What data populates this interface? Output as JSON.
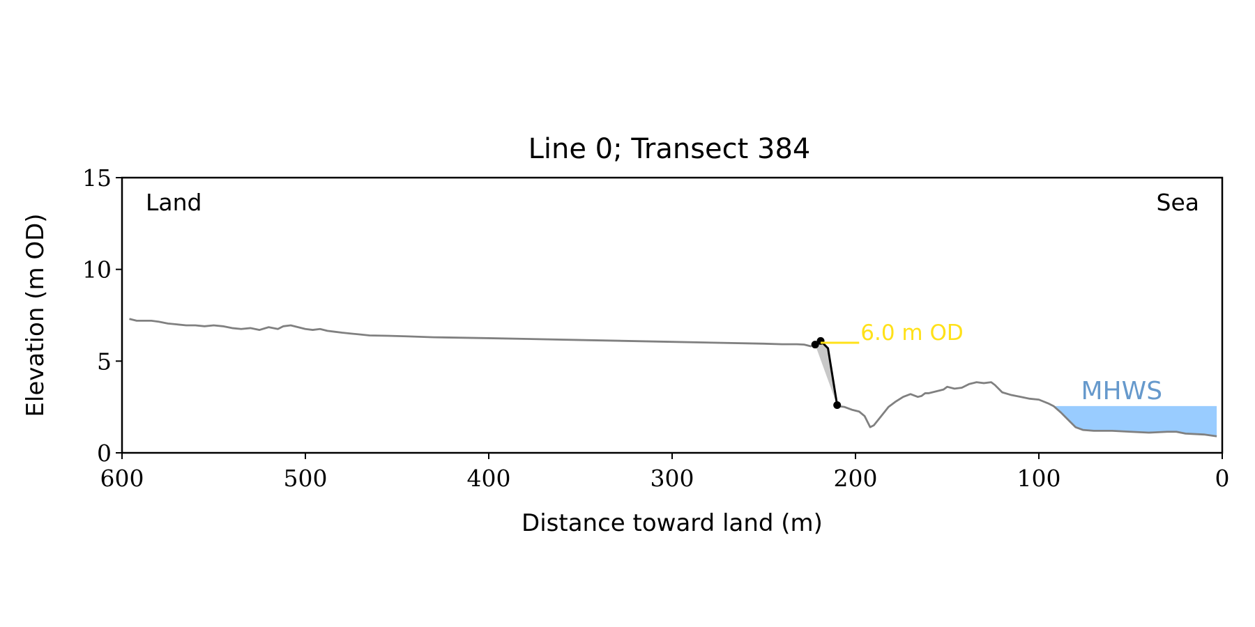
{
  "chart_data": {
    "type": "line",
    "title": "Line 0; Transect 384",
    "xlabel": "Distance toward land (m)",
    "ylabel": "Elevation (m OD)",
    "xlim": [
      600,
      0
    ],
    "ylim": [
      0,
      15
    ],
    "x_ticks": [
      600,
      500,
      400,
      300,
      200,
      100,
      0
    ],
    "y_ticks": [
      0,
      5,
      10,
      15
    ],
    "grid": false,
    "corner_labels": {
      "left": "Land",
      "right": "Sea"
    },
    "colors": {
      "profile": "#808080",
      "cliff": "#000000",
      "cliff_fill": "#c8c8c8",
      "threshold": "#ffe119",
      "mhws": "#99ccff",
      "mhws_text": "#6699cc"
    },
    "series": [
      {
        "x": [
          596,
          592,
          588,
          584,
          580,
          575,
          570,
          565,
          560,
          555,
          550,
          545,
          540,
          535,
          530,
          525,
          520,
          515,
          512,
          508,
          504,
          500,
          496,
          492,
          488,
          484,
          480,
          475,
          470,
          465,
          455,
          445,
          430,
          400,
          350,
          300,
          250,
          240,
          232,
          228,
          224
        ],
        "y": [
          7.3,
          7.2,
          7.2,
          7.2,
          7.15,
          7.05,
          7.0,
          6.95,
          6.95,
          6.9,
          6.95,
          6.9,
          6.8,
          6.75,
          6.8,
          6.7,
          6.85,
          6.75,
          6.9,
          6.95,
          6.85,
          6.75,
          6.7,
          6.75,
          6.65,
          6.6,
          6.55,
          6.5,
          6.45,
          6.4,
          6.38,
          6.35,
          6.3,
          6.25,
          6.15,
          6.05,
          5.95,
          5.92,
          5.92,
          5.9,
          5.8
        ]
      },
      {
        "x": [
          210,
          206,
          202,
          198,
          195,
          192,
          190,
          186,
          182,
          178,
          174,
          170,
          166,
          164,
          162,
          160,
          156,
          152,
          150,
          146,
          142,
          138,
          134,
          130,
          126,
          124,
          120,
          115,
          110,
          105,
          100,
          95,
          92,
          88,
          84,
          80,
          76,
          70,
          60,
          50,
          40,
          30,
          25,
          20,
          10,
          3
        ],
        "y": [
          2.55,
          2.5,
          2.35,
          2.25,
          2.0,
          1.4,
          1.5,
          2.0,
          2.5,
          2.8,
          3.05,
          3.2,
          3.05,
          3.1,
          3.25,
          3.25,
          3.35,
          3.45,
          3.6,
          3.5,
          3.55,
          3.75,
          3.85,
          3.8,
          3.85,
          3.7,
          3.3,
          3.15,
          3.05,
          2.95,
          2.9,
          2.7,
          2.55,
          2.2,
          1.8,
          1.4,
          1.25,
          1.2,
          1.2,
          1.15,
          1.1,
          1.15,
          1.15,
          1.05,
          1.0,
          0.9
        ]
      },
      {
        "x": [
          222,
          219,
          215,
          210
        ],
        "y": [
          5.9,
          6.1,
          5.7,
          2.6
        ]
      }
    ],
    "cliff_points": {
      "x": [
        222,
        219,
        210
      ],
      "y": [
        5.9,
        6.1,
        2.6
      ]
    },
    "threshold_line": {
      "x1": 219,
      "x2": 198,
      "y": 6.0,
      "label": "6.0 m OD"
    },
    "mhws": {
      "x1": 92,
      "x2": 3,
      "y": 2.55,
      "label": "MHWS"
    }
  }
}
